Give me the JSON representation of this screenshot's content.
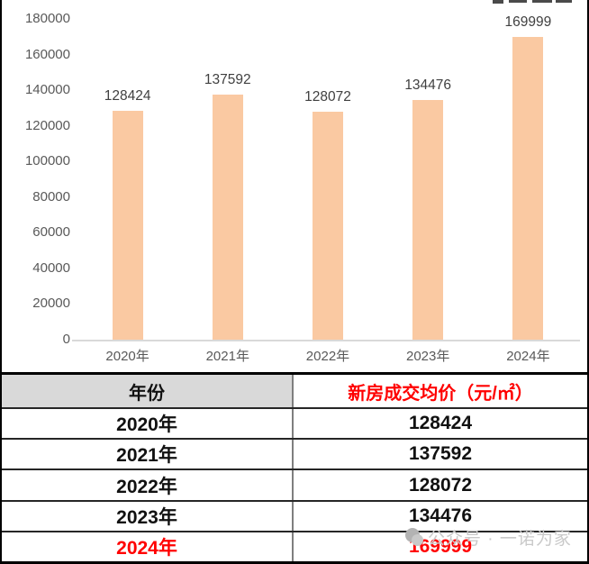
{
  "chart_data": {
    "type": "bar",
    "title": "",
    "xlabel": "",
    "ylabel": "",
    "categories": [
      "2020年",
      "2021年",
      "2022年",
      "2023年",
      "2024年"
    ],
    "values": [
      128424,
      137592,
      128072,
      134476,
      169999
    ],
    "value_labels": [
      "128424",
      "137592",
      "128072",
      "134476",
      "169999"
    ],
    "yticks": [
      0,
      20000,
      40000,
      60000,
      80000,
      100000,
      120000,
      140000,
      160000,
      180000
    ],
    "ylim": [
      0,
      180000
    ],
    "grid": false,
    "legend_position": "top-cut-off",
    "bar_color": "#FAC9A2",
    "axis_label_color": "#595959",
    "value_label_color": "#404040"
  },
  "table": {
    "header": {
      "year_label": "年份",
      "price_label": "新房成交均价（元/㎡）",
      "year_bg": "#D9D9D9",
      "price_color": "#FF0000"
    },
    "rows": [
      {
        "year": "2020年",
        "price": "128424",
        "highlight": false
      },
      {
        "year": "2021年",
        "price": "137592",
        "highlight": false
      },
      {
        "year": "2022年",
        "price": "128072",
        "highlight": false
      },
      {
        "year": "2023年",
        "price": "134476",
        "highlight": false
      },
      {
        "year": "2024年",
        "price": "169999",
        "highlight": true
      }
    ],
    "highlight_color": "#FF0000"
  },
  "watermark": {
    "text": "公众号 · 一诺为家"
  }
}
